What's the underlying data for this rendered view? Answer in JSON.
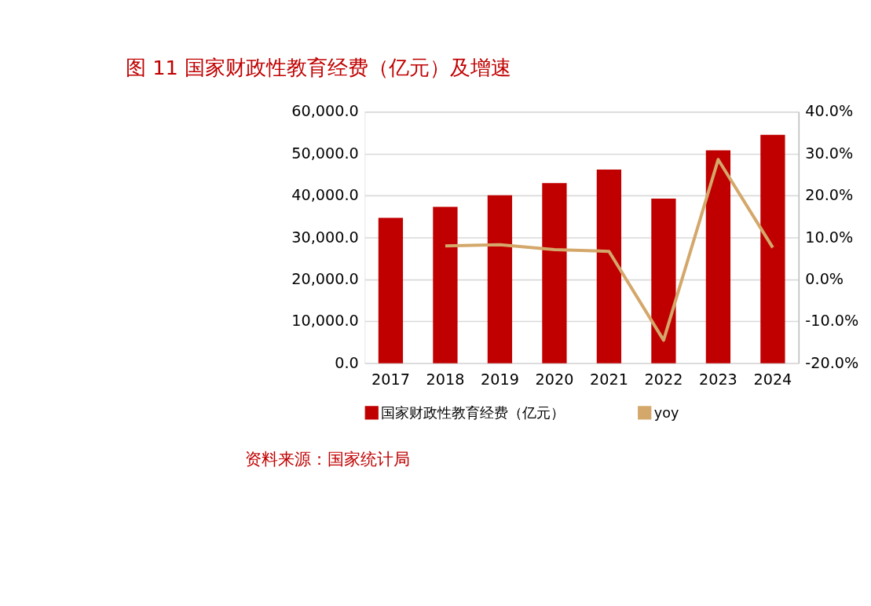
{
  "chart_data": {
    "type": "bar",
    "title": "图 11 国家财政性教育经费（亿元）及增速",
    "categories": [
      "2017",
      "2018",
      "2019",
      "2020",
      "2021",
      "2022",
      "2023",
      "2024"
    ],
    "series": [
      {
        "name": "国家财政性教育经费（亿元）",
        "type": "bar",
        "color": "#c00000",
        "values": [
          34700,
          37300,
          40100,
          43000,
          46200,
          39300,
          50800,
          54500
        ]
      },
      {
        "name": "yoy",
        "type": "line",
        "axis": "y2",
        "color": "#d4a76a",
        "values": [
          null,
          8.0,
          8.3,
          7.1,
          6.7,
          -14.5,
          28.6,
          7.6
        ]
      }
    ],
    "ylim": [
      0,
      60000
    ],
    "yticks": [
      {
        "value": 0,
        "label": "0.0"
      },
      {
        "value": 10000,
        "label": "10,000.0"
      },
      {
        "value": 20000,
        "label": "20,000.0"
      },
      {
        "value": 30000,
        "label": "30,000.0"
      },
      {
        "value": 40000,
        "label": "40,000.0"
      },
      {
        "value": 50000,
        "label": "50,000.0"
      },
      {
        "value": 60000,
        "label": "60,000.0"
      }
    ],
    "y2lim": [
      -20,
      40
    ],
    "y2ticks": [
      {
        "value": -20,
        "label": "-20.0%"
      },
      {
        "value": -10,
        "label": "-10.0%"
      },
      {
        "value": 0,
        "label": "0.0%"
      },
      {
        "value": 10,
        "label": "10.0%"
      },
      {
        "value": 20,
        "label": "20.0%"
      },
      {
        "value": 30,
        "label": "30.0%"
      },
      {
        "value": 40,
        "label": "40.0%"
      }
    ],
    "grid": "y",
    "legend": "bottom",
    "annotations": [
      "资料来源：国家统计局"
    ]
  }
}
